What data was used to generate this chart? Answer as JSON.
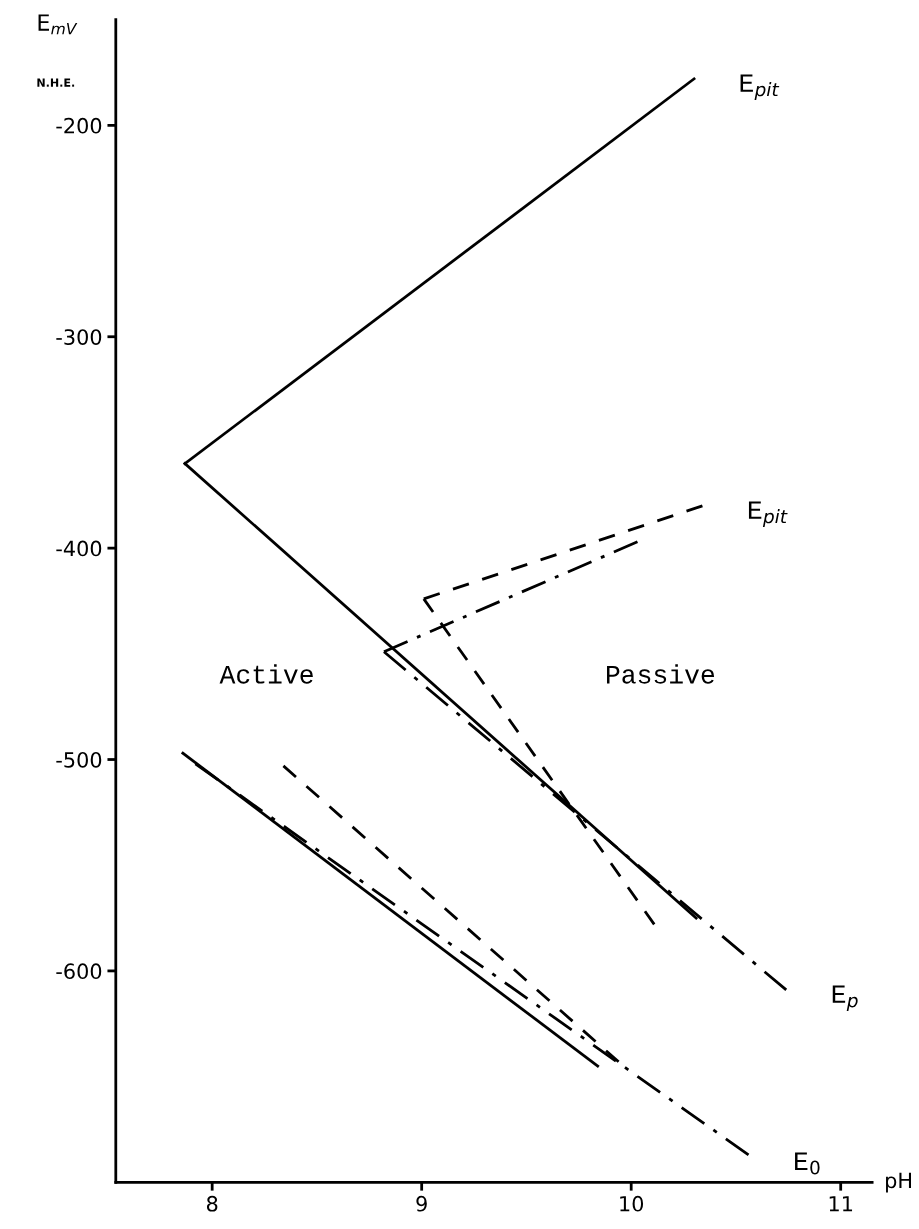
{
  "chart_data": {
    "type": "line",
    "xlabel": "pH",
    "ylabel": "E$_{mV}$",
    "xlim": [
      7.54,
      11.15
    ],
    "ylim": [
      -700,
      -150
    ],
    "xticks": [
      8,
      9,
      10,
      11
    ],
    "yticks": [
      -200,
      -300,
      -400,
      -500,
      -600
    ],
    "grid": false,
    "legend": false,
    "marker": "none",
    "series": [
      {
        "name": "E$_{pit}$",
        "color": "#000000",
        "line_style": "solid",
        "x": [
          7.87,
          10.3
        ],
        "values": [
          -360,
          -178
        ]
      },
      {
        "color": "#000000",
        "line_style": "solid",
        "x": [
          7.87,
          10.31
        ],
        "values": [
          -360,
          -575
        ]
      },
      {
        "color": "#000000",
        "line_style": "solid",
        "x": [
          7.86,
          9.84
        ],
        "values": [
          -497,
          -645
        ]
      },
      {
        "name": "E$_{pit}$",
        "color": "#000000",
        "line_style": "dashed",
        "x": [
          9.01,
          10.34
        ],
        "values": [
          -424,
          -380
        ]
      },
      {
        "color": "#000000",
        "line_style": "dashed",
        "x": [
          9.01,
          10.11
        ],
        "values": [
          -424,
          -578
        ]
      },
      {
        "color": "#000000",
        "line_style": "dashed",
        "x": [
          8.34,
          9.94
        ],
        "values": [
          -503,
          -643
        ]
      },
      {
        "color": "#000000",
        "line_style": "dashdot",
        "x": [
          8.82,
          10.03
        ],
        "values": [
          -449,
          -397
        ]
      },
      {
        "name": "E$_{p}$",
        "color": "#000000",
        "line_style": "dashdot",
        "x": [
          8.82,
          10.74
        ],
        "values": [
          -449,
          -609
        ]
      },
      {
        "name": "E$_{0}$",
        "color": "#000000",
        "line_style": "dashdot",
        "x": [
          7.92,
          10.56
        ],
        "values": [
          -502,
          -687
        ]
      }
    ],
    "annotations": [
      "N.H.E.",
      "Active",
      "Passive"
    ]
  }
}
